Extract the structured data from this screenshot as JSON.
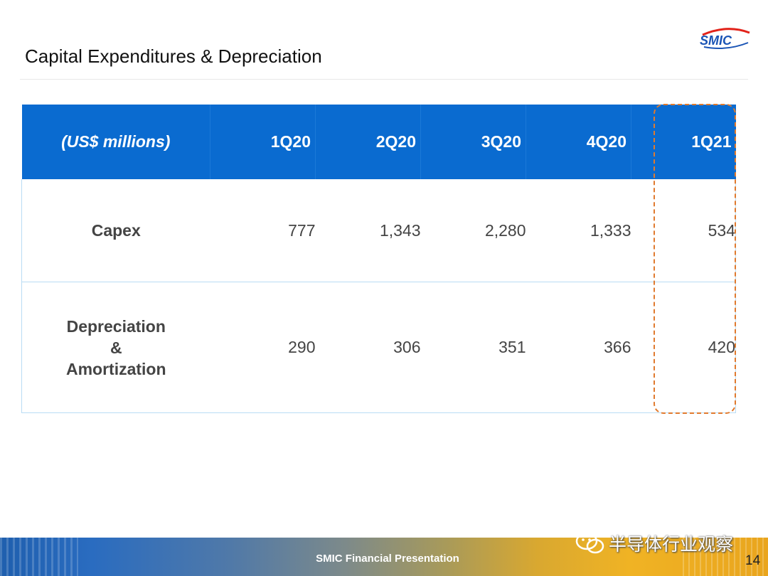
{
  "slide": {
    "title": "Capital Expenditures & Depreciation",
    "logo_text": "SMIC",
    "page_number": "14",
    "footer": "SMIC Financial Presentation",
    "watermark": "半导体行业观察"
  },
  "table": {
    "header_label": "(US$ millions)",
    "columns": [
      "1Q20",
      "2Q20",
      "3Q20",
      "4Q20",
      "1Q21"
    ],
    "rows": [
      {
        "label": "Capex",
        "values": [
          "777",
          "1,343",
          "2,280",
          "1,333",
          "534"
        ]
      },
      {
        "label_lines": [
          "Depreciation",
          "&",
          "Amortization"
        ],
        "values": [
          "290",
          "306",
          "351",
          "366",
          "420"
        ]
      }
    ],
    "highlighted_column": "1Q21"
  },
  "colors": {
    "header_bg": "#0a6bd0",
    "highlight_dash": "#e07a2e",
    "logo_blue": "#1a54b5",
    "logo_red": "#e2231a"
  }
}
